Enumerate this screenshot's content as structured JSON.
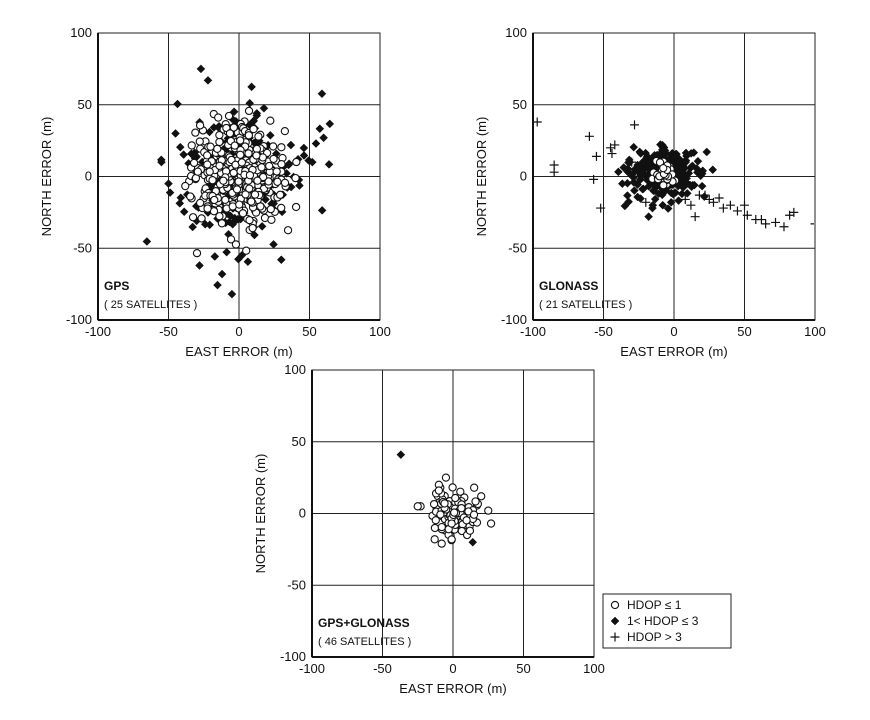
{
  "figure": {
    "legend": {
      "entries": [
        {
          "marker": "open-circle",
          "label": "HDOP ≤ 1"
        },
        {
          "marker": "filled-diamond",
          "label": "1< HDOP ≤ 3"
        },
        {
          "marker": "plus",
          "label": "HDOP > 3"
        }
      ]
    }
  },
  "chart_data": [
    {
      "type": "scatter",
      "panel_label": "GPS",
      "panel_sublabel": "( 25 SATELLITES )",
      "xlabel": "EAST ERROR (m)",
      "ylabel": "NORTH ERROR (m)",
      "xlim": [
        -100,
        100
      ],
      "ylim": [
        -100,
        100
      ],
      "xticks": [
        "-100",
        "-50",
        "0",
        "50",
        "100"
      ],
      "yticks": [
        "-100",
        "-50",
        "0",
        "50",
        "100"
      ],
      "grid": true,
      "series": [
        {
          "marker": "open-circle",
          "clusters": [
            {
              "cx": 0,
              "cy": 0,
              "sx": 15,
              "sy": 17,
              "n": 420
            }
          ]
        },
        {
          "marker": "filled-diamond",
          "clusters": [
            {
              "cx": 0,
              "cy": 2,
              "sx": 21,
              "sy": 24,
              "n": 240
            }
          ],
          "points": [
            [
              -27,
              75
            ],
            [
              -22,
              67
            ],
            [
              -45,
              30
            ],
            [
              60,
              27
            ],
            [
              -50,
              -5
            ],
            [
              -28,
              -62
            ],
            [
              -12,
              -68
            ],
            [
              -5,
              -82
            ],
            [
              2,
              -55
            ],
            [
              30,
              -58
            ],
            [
              -55,
              10
            ],
            [
              52,
              10
            ]
          ]
        },
        {
          "marker": "plus",
          "points": []
        }
      ]
    },
    {
      "type": "scatter",
      "panel_label": "GLONASS",
      "panel_sublabel": "( 21 SATELLITES )",
      "xlabel": "EAST ERROR (m)",
      "ylabel": "NORTH ERROR (m)",
      "xlim": [
        -100,
        100
      ],
      "ylim": [
        -100,
        100
      ],
      "xticks": [
        "-100",
        "-50",
        "0",
        "50",
        "100"
      ],
      "yticks": [
        "-100",
        "-50",
        "0",
        "50",
        "100"
      ],
      "grid": true,
      "series": [
        {
          "marker": "open-circle",
          "clusters": [
            {
              "cx": -7,
              "cy": 2,
              "sx": 4,
              "sy": 4,
              "n": 45
            }
          ]
        },
        {
          "marker": "filled-diamond",
          "clusters": [
            {
              "cx": -8,
              "cy": 3,
              "sx": 12,
              "sy": 8,
              "n": 300
            }
          ],
          "points": [
            [
              -15,
              -20
            ],
            [
              -8,
              -20
            ],
            [
              -18,
              -28
            ],
            [
              -2,
              -18
            ],
            [
              20,
              2
            ]
          ]
        },
        {
          "marker": "plus",
          "clusters": [],
          "points": [
            [
              -97,
              38
            ],
            [
              -85,
              8
            ],
            [
              -85,
              3
            ],
            [
              -60,
              28
            ],
            [
              -55,
              14
            ],
            [
              -57,
              -2
            ],
            [
              -52,
              -22
            ],
            [
              -45,
              20
            ],
            [
              -44,
              16
            ],
            [
              -42,
              22
            ],
            [
              -28,
              36
            ],
            [
              -30,
              10
            ],
            [
              -25,
              -3
            ],
            [
              -20,
              -18
            ],
            [
              -5,
              -8
            ],
            [
              0,
              -12
            ],
            [
              8,
              -16
            ],
            [
              12,
              -20
            ],
            [
              15,
              -28
            ],
            [
              18,
              -13
            ],
            [
              22,
              -13
            ],
            [
              25,
              -16
            ],
            [
              28,
              -18
            ],
            [
              32,
              -15
            ],
            [
              35,
              -22
            ],
            [
              40,
              -20
            ],
            [
              45,
              -24
            ],
            [
              50,
              -20
            ],
            [
              52,
              -27
            ],
            [
              58,
              -30
            ],
            [
              62,
              -30
            ],
            [
              65,
              -33
            ],
            [
              72,
              -32
            ],
            [
              78,
              -35
            ],
            [
              82,
              -27
            ],
            [
              85,
              -25
            ],
            [
              100,
              -33
            ]
          ]
        }
      ]
    },
    {
      "type": "scatter",
      "panel_label": "GPS+GLONASS",
      "panel_sublabel": "( 46 SATELLITES )",
      "xlabel": "EAST ERROR (m)",
      "ylabel": "NORTH ERROR (m)",
      "xlim": [
        -100,
        100
      ],
      "ylim": [
        -100,
        100
      ],
      "xticks": [
        "-100",
        "-50",
        "0",
        "50",
        "100"
      ],
      "yticks": [
        "-100",
        "-50",
        "0",
        "50",
        "100"
      ],
      "grid": true,
      "series": [
        {
          "marker": "open-circle",
          "clusters": [
            {
              "cx": 0,
              "cy": 0,
              "sx": 8,
              "sy": 7,
              "n": 110
            }
          ],
          "points": [
            [
              -13,
              -18
            ],
            [
              -8,
              -21
            ],
            [
              -12,
              14
            ],
            [
              -9,
              18
            ],
            [
              -10,
              20
            ],
            [
              -10,
              16
            ],
            [
              -7,
              8
            ],
            [
              -6,
              7
            ],
            [
              -5,
              25
            ],
            [
              25,
              2
            ],
            [
              27,
              -7
            ],
            [
              20,
              12
            ],
            [
              15,
              18
            ],
            [
              -23,
              5
            ],
            [
              -25,
              5
            ],
            [
              10,
              -15
            ],
            [
              12,
              -12
            ]
          ]
        },
        {
          "marker": "filled-diamond",
          "clusters": [],
          "points": [
            [
              -37,
              41
            ],
            [
              14,
              -20
            ]
          ]
        },
        {
          "marker": "plus",
          "clusters": [],
          "points": [
            [
              -5,
              2
            ],
            [
              2,
              -3
            ]
          ]
        }
      ]
    }
  ]
}
